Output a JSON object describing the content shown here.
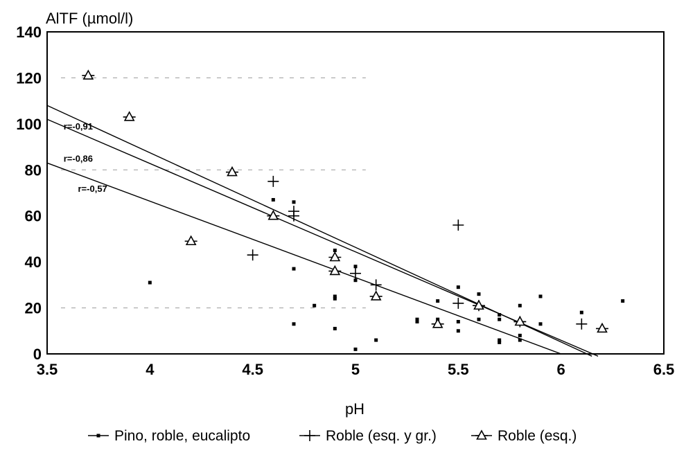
{
  "chart_data": {
    "type": "scatter",
    "ylabel": "AlTF (µmol/l)",
    "xlabel": "pH",
    "xlim": [
      3.5,
      6.5
    ],
    "ylim": [
      0,
      140
    ],
    "x_ticks": [
      "3.5",
      "4",
      "4.5",
      "5",
      "5.5",
      "6",
      "6.5"
    ],
    "y_ticks": [
      "0",
      "20",
      "40",
      "60",
      "80",
      "100",
      "120",
      "140"
    ],
    "grid": "faint dashed at 20, 80, 120",
    "series": [
      {
        "name": "Pino, roble, eucalipto",
        "marker": "square",
        "points": [
          [
            4.0,
            31
          ],
          [
            4.6,
            67
          ],
          [
            4.7,
            66
          ],
          [
            4.7,
            37
          ],
          [
            4.7,
            13
          ],
          [
            4.8,
            21
          ],
          [
            4.9,
            45
          ],
          [
            4.9,
            25
          ],
          [
            4.9,
            24
          ],
          [
            4.9,
            11
          ],
          [
            5.0,
            38
          ],
          [
            5.0,
            32
          ],
          [
            5.0,
            2
          ],
          [
            5.1,
            6
          ],
          [
            5.3,
            15
          ],
          [
            5.3,
            14
          ],
          [
            5.4,
            15
          ],
          [
            5.4,
            23
          ],
          [
            5.5,
            29
          ],
          [
            5.5,
            14
          ],
          [
            5.5,
            10
          ],
          [
            5.6,
            26
          ],
          [
            5.6,
            15
          ],
          [
            5.7,
            17
          ],
          [
            5.7,
            15
          ],
          [
            5.7,
            6
          ],
          [
            5.7,
            5
          ],
          [
            5.8,
            21
          ],
          [
            5.8,
            8
          ],
          [
            5.8,
            6
          ],
          [
            5.9,
            25
          ],
          [
            5.9,
            13
          ],
          [
            6.1,
            18
          ],
          [
            6.3,
            23
          ]
        ]
      },
      {
        "name": "Roble (esq. y gr.)",
        "marker": "plus",
        "points": [
          [
            4.5,
            43
          ],
          [
            4.6,
            75
          ],
          [
            4.7,
            62
          ],
          [
            4.7,
            60
          ],
          [
            5.0,
            35
          ],
          [
            5.1,
            30
          ],
          [
            5.5,
            56
          ],
          [
            5.5,
            22
          ],
          [
            5.6,
            21
          ],
          [
            5.8,
            14
          ],
          [
            6.1,
            13
          ]
        ]
      },
      {
        "name": "Roble (esq.)",
        "marker": "triangle",
        "points": [
          [
            3.7,
            121
          ],
          [
            3.9,
            103
          ],
          [
            4.2,
            49
          ],
          [
            4.4,
            79
          ],
          [
            4.6,
            60
          ],
          [
            4.9,
            42
          ],
          [
            4.9,
            36
          ],
          [
            5.1,
            25
          ],
          [
            5.4,
            13
          ],
          [
            5.6,
            21
          ],
          [
            5.8,
            14
          ],
          [
            6.2,
            11
          ]
        ]
      }
    ],
    "regression_lines": [
      {
        "label": "r=-0,91",
        "from": [
          3.5,
          108
        ],
        "to": [
          6.15,
          -1
        ]
      },
      {
        "label": "r=-0,86",
        "from": [
          3.5,
          102
        ],
        "to": [
          6.18,
          -1
        ]
      },
      {
        "label": "r=-0,57",
        "from": [
          3.5,
          83
        ],
        "to": [
          6.0,
          0
        ]
      }
    ],
    "legend": {
      "placement": "bottom",
      "entries": [
        "Pino, roble, eucalipto",
        "Roble (esq. y gr.)",
        "Roble (esq.)"
      ]
    }
  }
}
